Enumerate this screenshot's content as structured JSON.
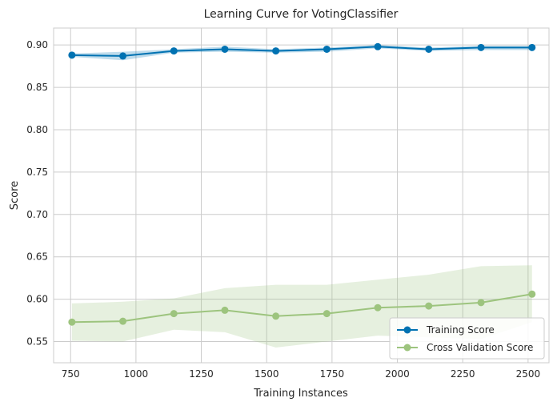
{
  "chart_data": {
    "type": "line",
    "title": "Learning Curve for VotingClassifier",
    "xlabel": "Training Instances",
    "ylabel": "Score",
    "xlim": [
      685,
      2580
    ],
    "ylim": [
      0.525,
      0.92
    ],
    "xticks": [
      750,
      1000,
      1250,
      1500,
      1750,
      2000,
      2250,
      2500
    ],
    "yticks": [
      0.55,
      0.6,
      0.65,
      0.7,
      0.75,
      0.8,
      0.85,
      0.9
    ],
    "x": [
      755,
      950,
      1145,
      1340,
      1535,
      1730,
      1925,
      2120,
      2320,
      2515
    ],
    "grid": true,
    "legend_position": "lower-right",
    "series": [
      {
        "name": "Training Score",
        "color": "#0072b2",
        "values": [
          0.888,
          0.887,
          0.893,
          0.895,
          0.893,
          0.895,
          0.898,
          0.895,
          0.897,
          0.897
        ],
        "band_lower": [
          0.886,
          0.882,
          0.891,
          0.892,
          0.891,
          0.892,
          0.896,
          0.893,
          0.894,
          0.894
        ],
        "band_upper": [
          0.89,
          0.892,
          0.895,
          0.898,
          0.895,
          0.897,
          0.9,
          0.897,
          0.899,
          0.899
        ]
      },
      {
        "name": "Cross Validation Score",
        "color": "#9dc47e",
        "values": [
          0.573,
          0.574,
          0.583,
          0.587,
          0.58,
          0.583,
          0.59,
          0.592,
          0.596,
          0.606
        ],
        "band_lower": [
          0.551,
          0.55,
          0.564,
          0.561,
          0.543,
          0.55,
          0.557,
          0.555,
          0.553,
          0.573
        ],
        "band_upper": [
          0.595,
          0.597,
          0.601,
          0.613,
          0.617,
          0.617,
          0.623,
          0.629,
          0.639,
          0.64
        ]
      }
    ]
  }
}
